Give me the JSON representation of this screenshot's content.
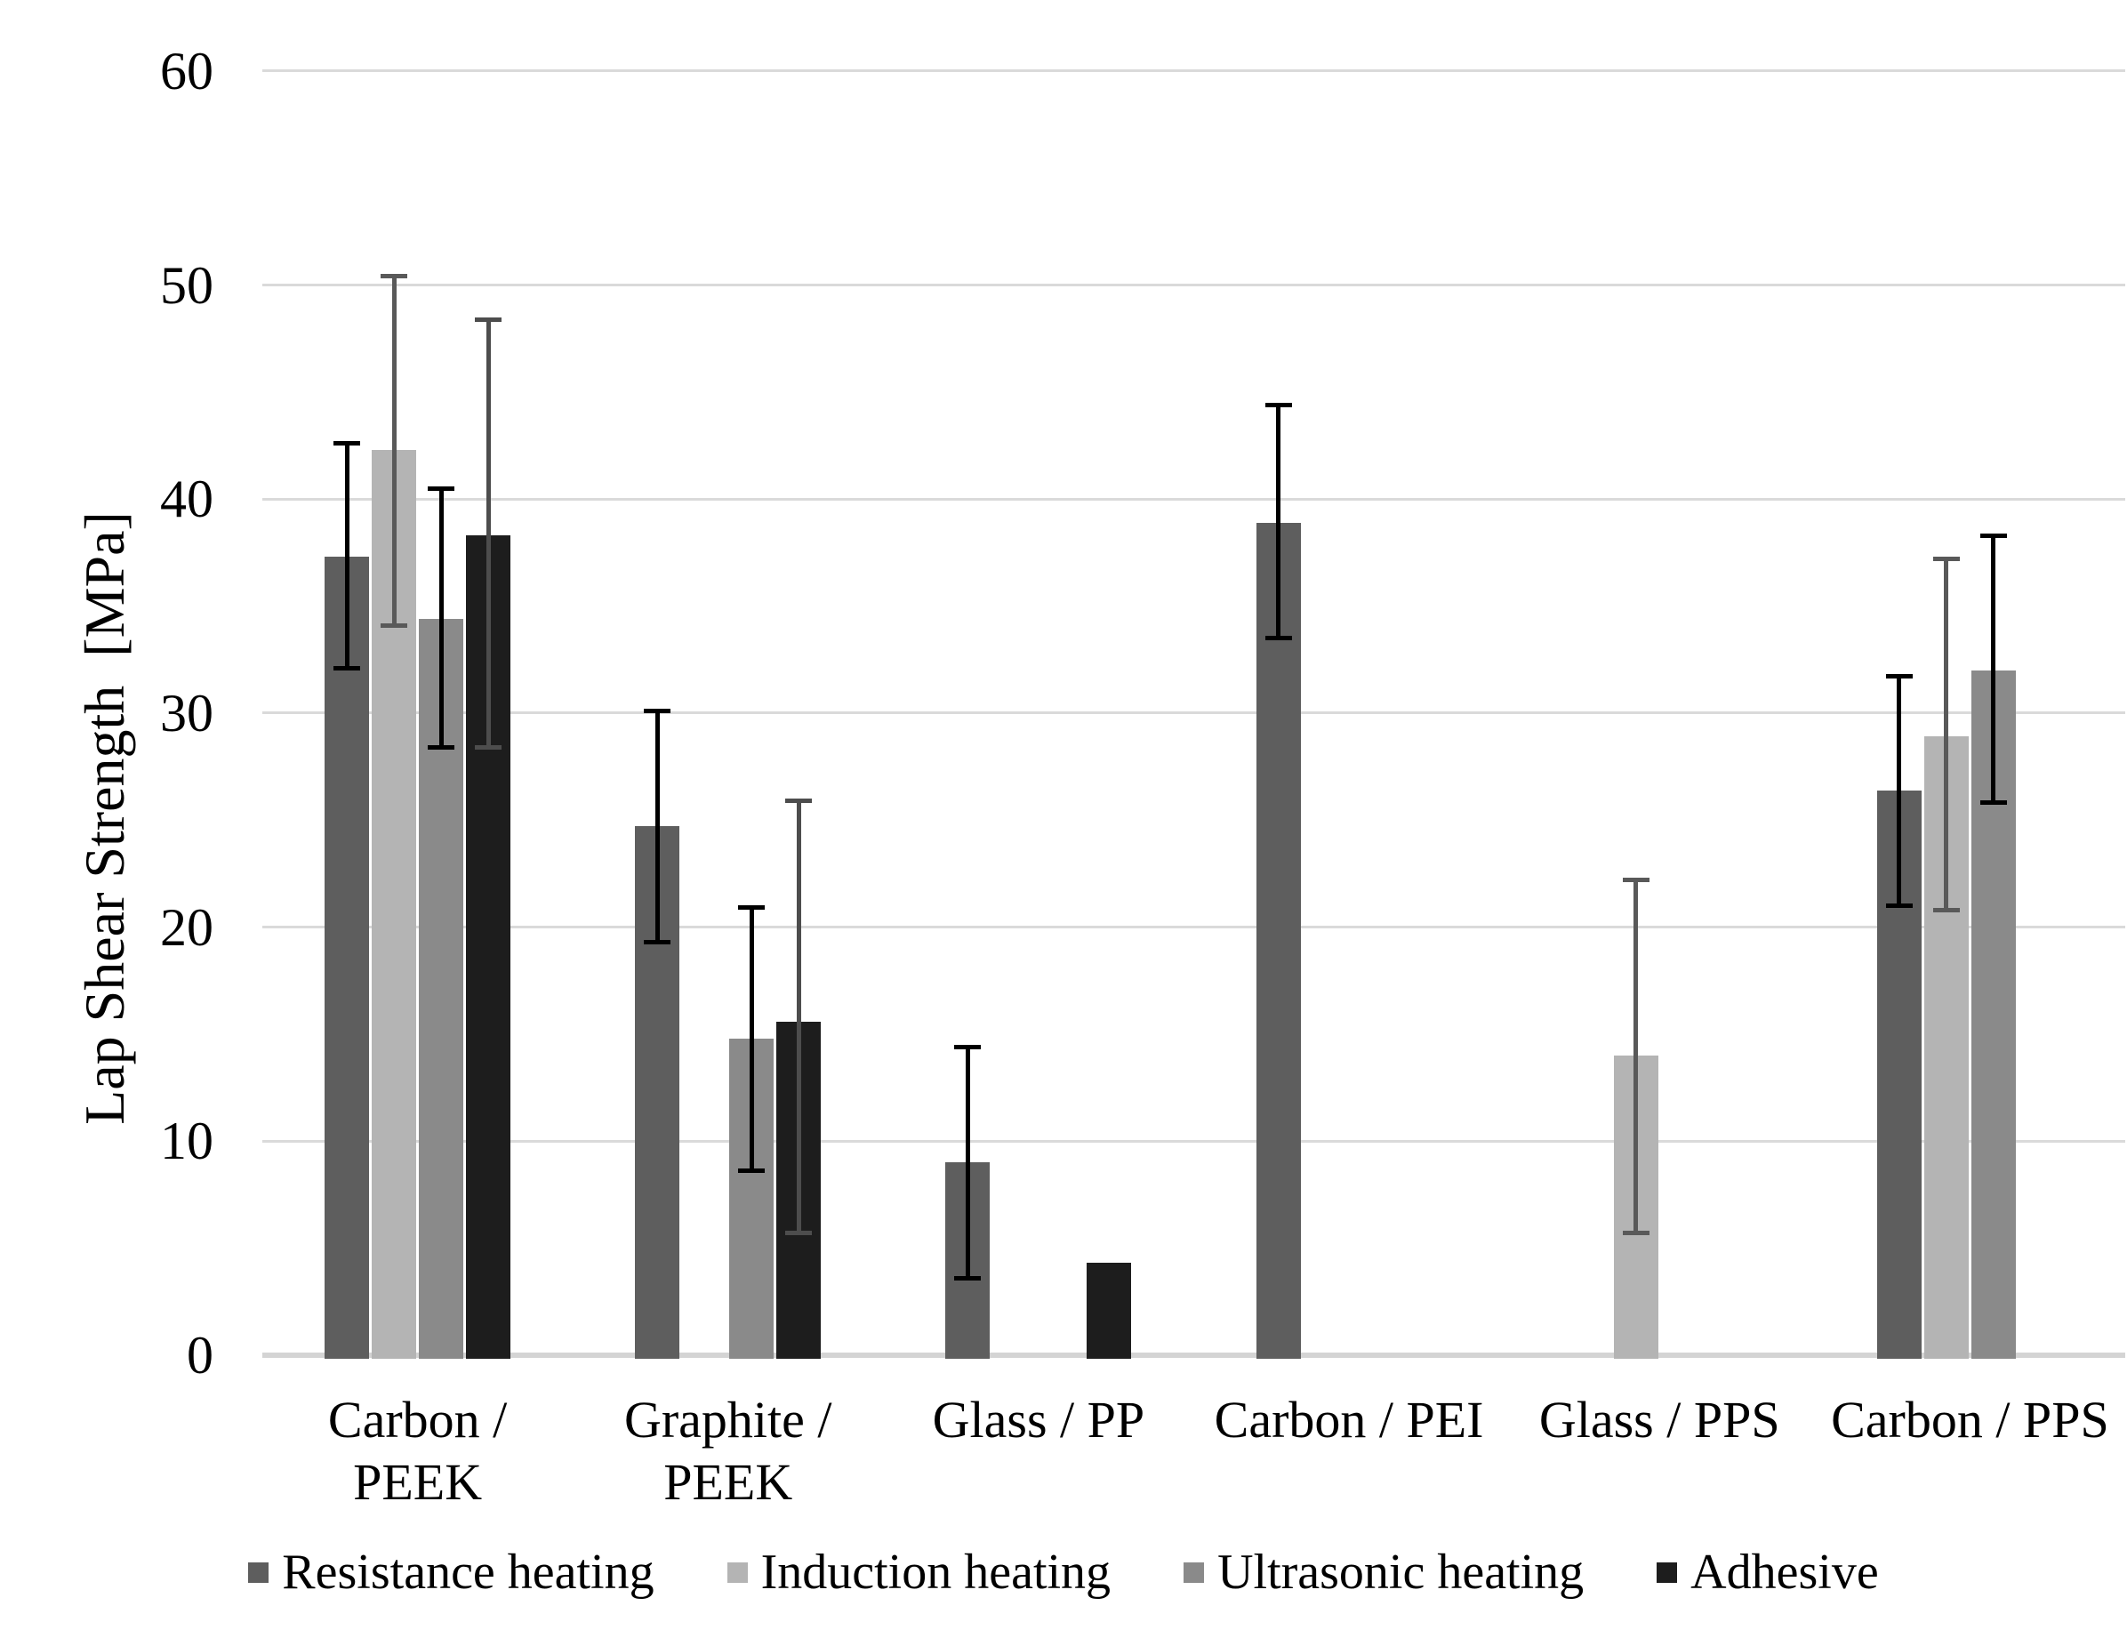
{
  "figure": {
    "background": "#ffffff"
  },
  "chart_data": {
    "type": "bar",
    "title": "",
    "xlabel": "",
    "ylabel": "Lap Shear Strength  [MPa]",
    "ylim": [
      0,
      60
    ],
    "yticks": [
      0,
      10,
      20,
      30,
      40,
      50,
      60
    ],
    "grid": "horizontal",
    "legend_position": "bottom",
    "colors": {
      "gridline": "#dadada",
      "axis_line": "#d4d4d4",
      "text": "#000000"
    },
    "categories": [
      "Carbon / PEEK",
      "Graphite / PEEK",
      "Glass / PP",
      "Carbon / PEI",
      "Glass / PPS",
      "Carbon / PPS"
    ],
    "category_label_lines": [
      [
        "Carbon /",
        "PEEK"
      ],
      [
        "Graphite /",
        "PEEK"
      ],
      [
        "Glass / PP"
      ],
      [
        "Carbon / PEI"
      ],
      [
        "Glass / PPS"
      ],
      [
        "Carbon / PPS"
      ]
    ],
    "series": [
      {
        "name": "Resistance heating",
        "color": "#5e5e5e",
        "error_color": "#000000",
        "values": [
          37.3,
          24.7,
          9.0,
          38.9,
          null,
          26.4
        ],
        "error_low": [
          32.1,
          19.3,
          3.6,
          33.5,
          null,
          21.0
        ],
        "error_high": [
          42.6,
          30.1,
          14.4,
          44.4,
          null,
          31.7
        ]
      },
      {
        "name": "Induction heating",
        "color": "#b4b4b4",
        "error_color": "#595959",
        "values": [
          42.3,
          null,
          null,
          null,
          14.0,
          28.9
        ],
        "error_low": [
          34.1,
          null,
          null,
          null,
          5.7,
          20.8
        ],
        "error_high": [
          50.4,
          null,
          null,
          null,
          22.2,
          37.2
        ]
      },
      {
        "name": "Ultrasonic heating",
        "color": "#8a8a8a",
        "error_color": "#000000",
        "values": [
          34.4,
          14.8,
          null,
          null,
          null,
          32.0
        ],
        "error_low": [
          28.4,
          8.6,
          null,
          null,
          null,
          25.8
        ],
        "error_high": [
          40.5,
          20.9,
          null,
          null,
          null,
          38.3
        ]
      },
      {
        "name": "Adhesive",
        "color": "#1d1d1d",
        "error_color": "#4d4d4d",
        "values": [
          38.3,
          15.6,
          4.3,
          null,
          null,
          null
        ],
        "error_low": [
          28.4,
          5.7,
          null,
          null,
          null,
          null
        ],
        "error_high": [
          48.4,
          25.9,
          null,
          null,
          null,
          null
        ]
      }
    ]
  }
}
